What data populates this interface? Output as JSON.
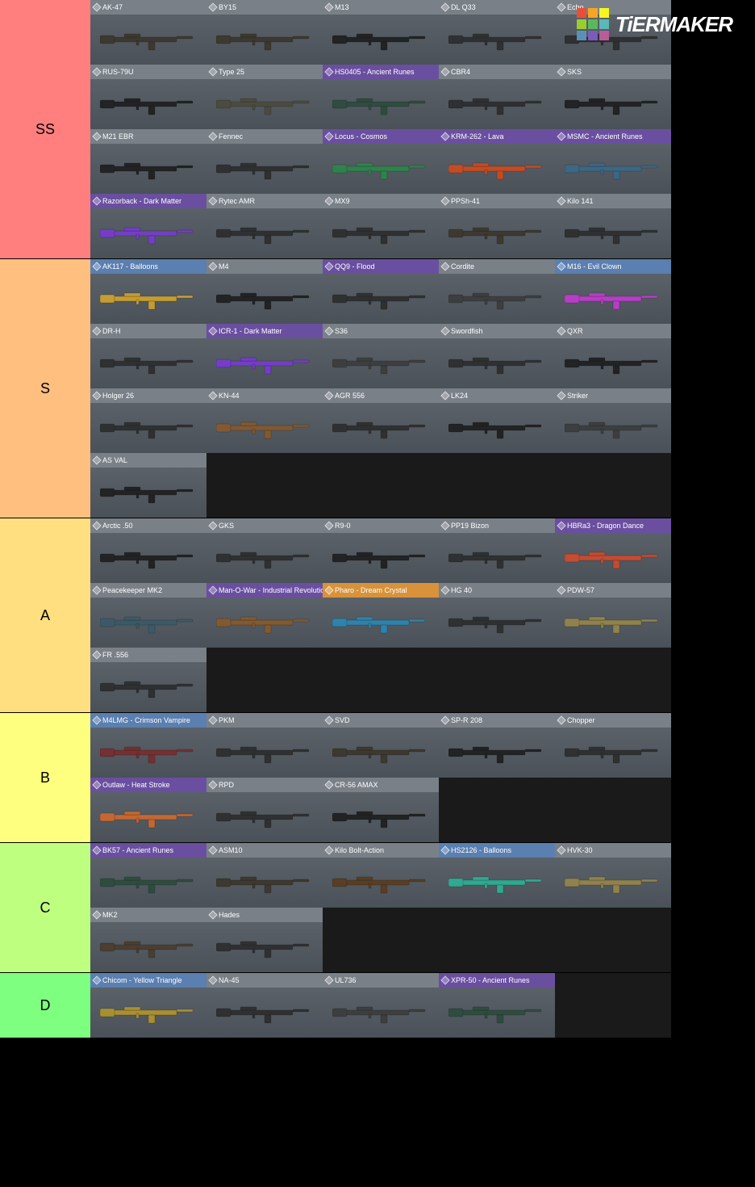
{
  "watermark": {
    "text": "TiERMAKER",
    "grid_colors": [
      "#e94f37",
      "#f6a623",
      "#f6f623",
      "#9acd32",
      "#5cb85c",
      "#5cb8b8",
      "#5c8fb8",
      "#7a5cb8",
      "#b85c9a"
    ]
  },
  "header_colors": {
    "gray": "#7a8088",
    "blue": "#5a7fb0",
    "purple": "#6a4fa0",
    "orange": "#d8923a"
  },
  "tiers": [
    {
      "label": "SS",
      "color": "#ff7f7f",
      "items": [
        {
          "name": "AK-47",
          "hc": "gray",
          "wc": "#3a3428"
        },
        {
          "name": "BY15",
          "hc": "gray",
          "wc": "#3a3428"
        },
        {
          "name": "M13",
          "hc": "gray",
          "wc": "#1a1a1a"
        },
        {
          "name": "DL Q33",
          "hc": "gray",
          "wc": "#2a2a2a"
        },
        {
          "name": "Echo",
          "hc": "gray",
          "wc": "#2a2a2a"
        },
        {
          "name": "RUS-79U",
          "hc": "gray",
          "wc": "#1a1a1a"
        },
        {
          "name": "Type 25",
          "hc": "gray",
          "wc": "#4a4a3a"
        },
        {
          "name": "HS0405 - Ancient Runes",
          "hc": "purple",
          "wc": "#2a4a3a"
        },
        {
          "name": "CBR4",
          "hc": "gray",
          "wc": "#2a2a2a"
        },
        {
          "name": "SKS",
          "hc": "gray",
          "wc": "#1a1a1a"
        },
        {
          "name": "M21 EBR",
          "hc": "gray",
          "wc": "#1a1a1a"
        },
        {
          "name": "Fennec",
          "hc": "gray",
          "wc": "#2a2a2a"
        },
        {
          "name": "Locus - Cosmos",
          "hc": "purple",
          "wc": "#2a8a4a"
        },
        {
          "name": "KRM-262 - Lava",
          "hc": "purple",
          "wc": "#d84a1a"
        },
        {
          "name": "MSMC - Ancient Runes",
          "hc": "purple",
          "wc": "#3a6a8a"
        },
        {
          "name": "Razorback - Dark Matter",
          "hc": "purple",
          "wc": "#7a3ad8"
        },
        {
          "name": "Rytec AMR",
          "hc": "gray",
          "wc": "#2a2a2a"
        },
        {
          "name": "MX9",
          "hc": "gray",
          "wc": "#2a2a2a"
        },
        {
          "name": "PPSh-41",
          "hc": "gray",
          "wc": "#3a3428"
        },
        {
          "name": "Kilo 141",
          "hc": "gray",
          "wc": "#2a2a2a"
        }
      ]
    },
    {
      "label": "S",
      "color": "#ffbf7f",
      "items": [
        {
          "name": "AK117 - Balloons",
          "hc": "blue",
          "wc": "#d8a82a"
        },
        {
          "name": "M4",
          "hc": "gray",
          "wc": "#1a1a1a"
        },
        {
          "name": "QQ9 - Flood",
          "hc": "purple",
          "wc": "#2a2a2a"
        },
        {
          "name": "Cordite",
          "hc": "gray",
          "wc": "#3a3a3a"
        },
        {
          "name": "M16 - Evil Clown",
          "hc": "blue",
          "wc": "#c83ad8"
        },
        {
          "name": "DR-H",
          "hc": "gray",
          "wc": "#2a2a2a"
        },
        {
          "name": "ICR-1 - Dark Matter",
          "hc": "purple",
          "wc": "#7a3ad8"
        },
        {
          "name": "S36",
          "hc": "gray",
          "wc": "#3a3a3a"
        },
        {
          "name": "Swordfish",
          "hc": "gray",
          "wc": "#2a2a2a"
        },
        {
          "name": "QXR",
          "hc": "gray",
          "wc": "#1a1a1a"
        },
        {
          "name": "Holger 26",
          "hc": "gray",
          "wc": "#2a2a2a"
        },
        {
          "name": "KN-44",
          "hc": "gray",
          "wc": "#8a5a2a"
        },
        {
          "name": "AGR 556",
          "hc": "gray",
          "wc": "#2a2a2a"
        },
        {
          "name": "LK24",
          "hc": "gray",
          "wc": "#1a1a1a"
        },
        {
          "name": "Striker",
          "hc": "gray",
          "wc": "#3a3a3a"
        },
        {
          "name": "AS VAL",
          "hc": "gray",
          "wc": "#1a1a1a"
        }
      ]
    },
    {
      "label": "A",
      "color": "#ffdf7f",
      "items": [
        {
          "name": "Arctic .50",
          "hc": "gray",
          "wc": "#1a1a1a"
        },
        {
          "name": "GKS",
          "hc": "gray",
          "wc": "#2a2a2a"
        },
        {
          "name": "R9-0",
          "hc": "gray",
          "wc": "#1a1a1a"
        },
        {
          "name": "PP19 Bizon",
          "hc": "gray",
          "wc": "#2a2a2a"
        },
        {
          "name": "HBRa3 - Dragon Dance",
          "hc": "purple",
          "wc": "#d84a2a"
        },
        {
          "name": "Peacekeeper MK2",
          "hc": "gray",
          "wc": "#3a5a6a"
        },
        {
          "name": "Man-O-War - Industrial Revolution",
          "hc": "purple",
          "wc": "#8a5a2a"
        },
        {
          "name": "Pharo - Dream Crystal",
          "hc": "orange",
          "wc": "#2a8ab8"
        },
        {
          "name": "HG 40",
          "hc": "gray",
          "wc": "#2a2a2a"
        },
        {
          "name": "PDW-57",
          "hc": "gray",
          "wc": "#9a8a4a"
        },
        {
          "name": "FR .556",
          "hc": "gray",
          "wc": "#2a2a2a"
        }
      ]
    },
    {
      "label": "B",
      "color": "#ffff7f",
      "items": [
        {
          "name": "M4LMG - Crimson Vampire",
          "hc": "blue",
          "wc": "#7a2a2a"
        },
        {
          "name": "PKM",
          "hc": "gray",
          "wc": "#2a2a2a"
        },
        {
          "name": "SVD",
          "hc": "gray",
          "wc": "#3a3428"
        },
        {
          "name": "SP-R 208",
          "hc": "gray",
          "wc": "#1a1a1a"
        },
        {
          "name": "Chopper",
          "hc": "gray",
          "wc": "#2a2a2a"
        },
        {
          "name": "Outlaw - Heat Stroke",
          "hc": "purple",
          "wc": "#d86a2a"
        },
        {
          "name": "RPD",
          "hc": "gray",
          "wc": "#2a2a2a"
        },
        {
          "name": "CR-56 AMAX",
          "hc": "gray",
          "wc": "#1a1a1a"
        }
      ]
    },
    {
      "label": "C",
      "color": "#bfff7f",
      "items": [
        {
          "name": "BK57 - Ancient Runes",
          "hc": "purple",
          "wc": "#2a4a3a"
        },
        {
          "name": "ASM10",
          "hc": "gray",
          "wc": "#3a3428"
        },
        {
          "name": "Kilo Bolt-Action",
          "hc": "gray",
          "wc": "#5a3a1a"
        },
        {
          "name": "HS2126 - Balloons",
          "hc": "blue",
          "wc": "#2ab89a"
        },
        {
          "name": "HVK-30",
          "hc": "gray",
          "wc": "#9a8a4a"
        },
        {
          "name": "MK2",
          "hc": "gray",
          "wc": "#4a3a2a"
        },
        {
          "name": "Hades",
          "hc": "gray",
          "wc": "#2a2a2a"
        }
      ]
    },
    {
      "label": "D",
      "color": "#7fff7f",
      "items": [
        {
          "name": "Chicom - Yellow Triangle",
          "hc": "blue",
          "wc": "#b89a2a"
        },
        {
          "name": "NA-45",
          "hc": "gray",
          "wc": "#2a2a2a"
        },
        {
          "name": "UL736",
          "hc": "gray",
          "wc": "#3a3a3a"
        },
        {
          "name": "XPR-50 - Ancient Runes",
          "hc": "purple",
          "wc": "#2a4a3a"
        }
      ]
    }
  ]
}
